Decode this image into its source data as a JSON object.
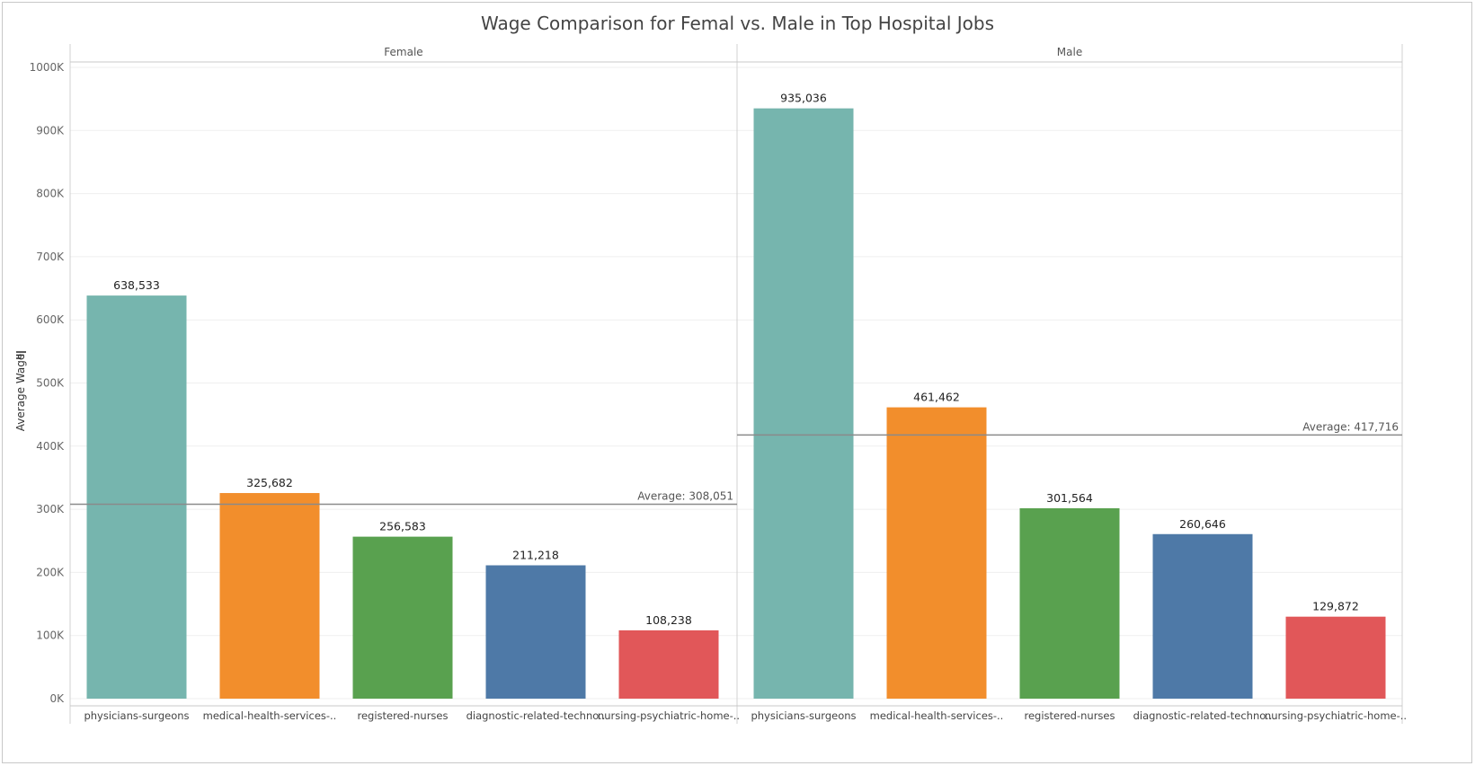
{
  "chart_data": {
    "type": "bar",
    "title": "Wage Comparison for Femal vs. Male in Top Hospital Jobs",
    "ylabel": "Average Wage",
    "ylim": [
      0,
      1000000
    ],
    "yticks": [
      0,
      100000,
      200000,
      300000,
      400000,
      500000,
      600000,
      700000,
      800000,
      900000,
      1000000
    ],
    "ytick_labels": [
      "0K",
      "100K",
      "200K",
      "300K",
      "400K",
      "500K",
      "600K",
      "700K",
      "800K",
      "900K",
      "1000K"
    ],
    "grid": true,
    "categories": [
      "physicians-surgeons",
      "medical-health-services-..",
      "registered-nurses",
      "diagnostic-related-techno..",
      "nursing-psychiatric-home-.."
    ],
    "colors": [
      "#76b5ae",
      "#f28e2c",
      "#59a14f",
      "#4e79a7",
      "#e15759"
    ],
    "panels": [
      {
        "name": "Female",
        "values": [
          638533,
          325682,
          256583,
          211218,
          108238
        ],
        "value_labels": [
          "638,533",
          "325,682",
          "256,583",
          "211,218",
          "108,238"
        ],
        "average": 308051,
        "average_label": "Average: 308,051"
      },
      {
        "name": "Male",
        "values": [
          935036,
          461462,
          301564,
          260646,
          129872
        ],
        "value_labels": [
          "935,036",
          "461,462",
          "301,564",
          "260,646",
          "129,872"
        ],
        "average": 417716,
        "average_label": "Average: 417,716"
      }
    ]
  }
}
